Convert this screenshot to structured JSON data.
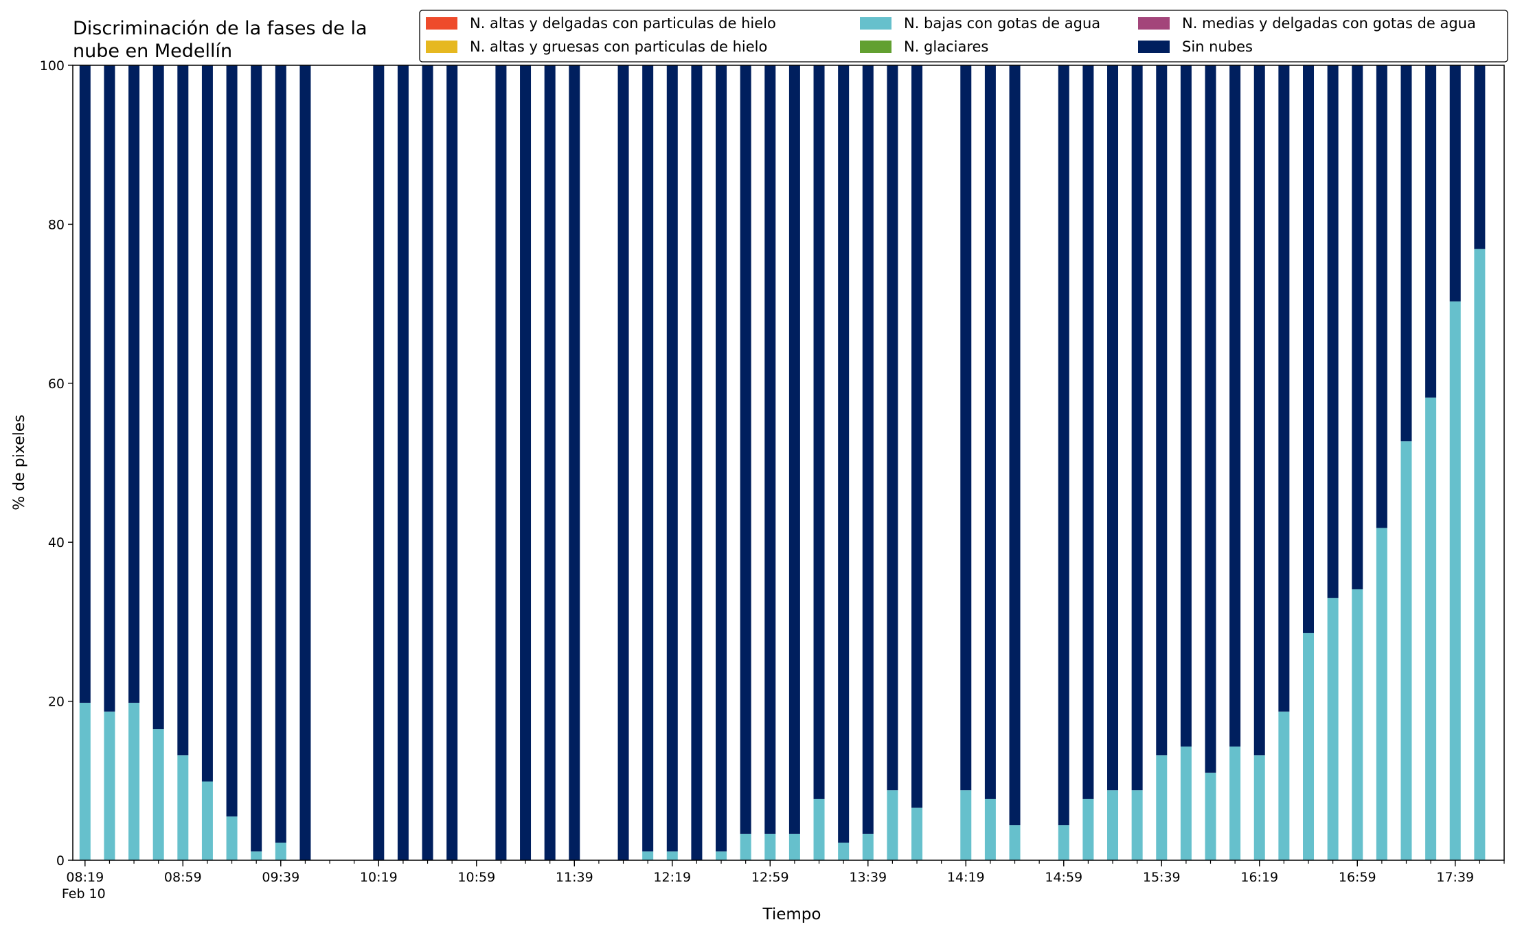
{
  "chart_data": {
    "type": "bar",
    "stacked": true,
    "title_line1": "Discriminación de la fases de la",
    "title_line2": "nube en Medellín",
    "xlabel": "Tiempo",
    "ylabel": "% de pixeles",
    "ylim": [
      0,
      100
    ],
    "yticks": [
      0,
      20,
      40,
      60,
      80,
      100
    ],
    "xticks": [
      {
        "label": "08:19",
        "sublabel": "Feb 10"
      },
      {
        "label": "08:59",
        "sublabel": ""
      },
      {
        "label": "09:39",
        "sublabel": ""
      },
      {
        "label": "10:19",
        "sublabel": ""
      },
      {
        "label": "10:59",
        "sublabel": ""
      },
      {
        "label": "11:39",
        "sublabel": ""
      },
      {
        "label": "12:19",
        "sublabel": ""
      },
      {
        "label": "12:59",
        "sublabel": ""
      },
      {
        "label": "13:39",
        "sublabel": ""
      },
      {
        "label": "14:19",
        "sublabel": ""
      },
      {
        "label": "14:59",
        "sublabel": ""
      },
      {
        "label": "15:39",
        "sublabel": ""
      },
      {
        "label": "16:19",
        "sublabel": ""
      },
      {
        "label": "16:59",
        "sublabel": ""
      },
      {
        "label": "17:39",
        "sublabel": ""
      }
    ],
    "grid": false,
    "legend_position": "top-right",
    "legend": [
      {
        "name": "N. altas y delgadas con particulas de hielo",
        "color": "#ee4b2b"
      },
      {
        "name": "N. altas y gruesas con particulas de hielo",
        "color": "#e6b820"
      },
      {
        "name": "N. bajas con gotas de agua",
        "color": "#66c0cc"
      },
      {
        "name": "N. glaciares",
        "color": "#62a030"
      },
      {
        "name": "N. medias y delgadas con gotas de agua",
        "color": "#a3457a"
      },
      {
        "name": "Sin nubes",
        "color": "#001f5e"
      }
    ],
    "x": [
      "08:19",
      "08:29",
      "08:39",
      "08:49",
      "08:59",
      "09:09",
      "09:19",
      "09:29",
      "09:39",
      "09:49",
      "10:19",
      "10:29",
      "10:39",
      "10:49",
      "11:09",
      "11:19",
      "11:29",
      "11:39",
      "11:59",
      "12:09",
      "12:19",
      "12:29",
      "12:39",
      "12:49",
      "12:59",
      "13:09",
      "13:19",
      "13:29",
      "13:39",
      "13:49",
      "13:59",
      "14:19",
      "14:29",
      "14:39",
      "14:59",
      "15:09",
      "15:19",
      "15:29",
      "15:39",
      "15:49",
      "15:59",
      "16:09",
      "16:19",
      "16:29",
      "16:39",
      "16:49",
      "16:59",
      "17:09",
      "17:19",
      "17:29",
      "17:39",
      "17:49"
    ],
    "series": [
      {
        "name": "N. altas y delgadas con particulas de hielo",
        "color": "#ee4b2b",
        "values": [
          0,
          0,
          0,
          0,
          0,
          0,
          0,
          0,
          0,
          0,
          0,
          0,
          0,
          0,
          0,
          0,
          0,
          0,
          0,
          0,
          0,
          0,
          0,
          0,
          0,
          0,
          0,
          0,
          0,
          0,
          0,
          0,
          0,
          0,
          0,
          0,
          0,
          0,
          0,
          0,
          0,
          0,
          0,
          0,
          0,
          0,
          0,
          0,
          0,
          0,
          0,
          0
        ]
      },
      {
        "name": "N. altas y gruesas con particulas de hielo",
        "color": "#e6b820",
        "values": [
          0,
          0,
          0,
          0,
          0,
          0,
          0,
          0,
          0,
          0,
          0,
          0,
          0,
          0,
          0,
          0,
          0,
          0,
          0,
          0,
          0,
          0,
          0,
          0,
          0,
          0,
          0,
          0,
          0,
          0,
          0,
          0,
          0,
          0,
          0,
          0,
          0,
          0,
          0,
          0,
          0,
          0,
          0,
          0,
          0,
          0,
          0,
          0,
          0,
          0,
          0,
          0
        ]
      },
      {
        "name": "N. bajas con gotas de agua",
        "color": "#66c0cc",
        "values": [
          19.8,
          18.7,
          19.8,
          16.5,
          13.2,
          9.9,
          5.5,
          1.1,
          2.2,
          0,
          0,
          0,
          0,
          0,
          0,
          0,
          0,
          0,
          0,
          1.1,
          1.1,
          0,
          1.1,
          3.3,
          3.3,
          3.3,
          7.7,
          2.2,
          3.3,
          8.8,
          6.6,
          8.8,
          7.7,
          4.4,
          4.4,
          7.7,
          8.8,
          8.8,
          13.2,
          14.3,
          11.0,
          14.3,
          13.2,
          18.7,
          28.6,
          33.0,
          34.1,
          41.8,
          52.7,
          58.2,
          70.3,
          76.9
        ]
      },
      {
        "name": "N. glaciares",
        "color": "#62a030",
        "values": [
          0,
          0,
          0,
          0,
          0,
          0,
          0,
          0,
          0,
          0,
          0,
          0,
          0,
          0,
          0,
          0,
          0,
          0,
          0,
          0,
          0,
          0,
          0,
          0,
          0,
          0,
          0,
          0,
          0,
          0,
          0,
          0,
          0,
          0,
          0,
          0,
          0,
          0,
          0,
          0,
          0,
          0,
          0,
          0,
          0,
          0,
          0,
          0,
          0,
          0,
          0,
          0
        ]
      },
      {
        "name": "N. medias y delgadas con gotas de agua",
        "color": "#a3457a",
        "values": [
          0,
          0,
          0,
          0,
          0,
          0,
          0,
          0,
          0,
          0,
          0,
          0,
          0,
          0,
          0,
          0,
          0,
          0,
          0,
          0,
          0,
          0,
          0,
          0,
          0,
          0,
          0,
          0,
          0,
          0,
          0,
          0,
          0,
          0,
          0,
          0,
          0,
          0,
          0,
          0,
          0,
          0,
          0,
          0,
          0,
          0,
          0,
          0,
          0,
          0,
          0,
          0
        ]
      },
      {
        "name": "Sin nubes",
        "color": "#001f5e",
        "values": [
          80.2,
          81.3,
          80.2,
          83.5,
          86.8,
          90.1,
          94.5,
          98.9,
          97.8,
          100,
          100,
          100,
          100,
          100,
          100,
          100,
          100,
          100,
          100,
          98.9,
          98.9,
          100,
          98.9,
          96.7,
          96.7,
          96.7,
          92.3,
          97.8,
          96.7,
          91.2,
          93.4,
          91.2,
          92.3,
          95.6,
          95.6,
          92.3,
          91.2,
          91.2,
          86.8,
          85.7,
          89.0,
          85.7,
          86.8,
          81.3,
          71.4,
          67.0,
          65.9,
          58.2,
          47.3,
          41.8,
          29.7,
          23.1
        ]
      }
    ]
  }
}
